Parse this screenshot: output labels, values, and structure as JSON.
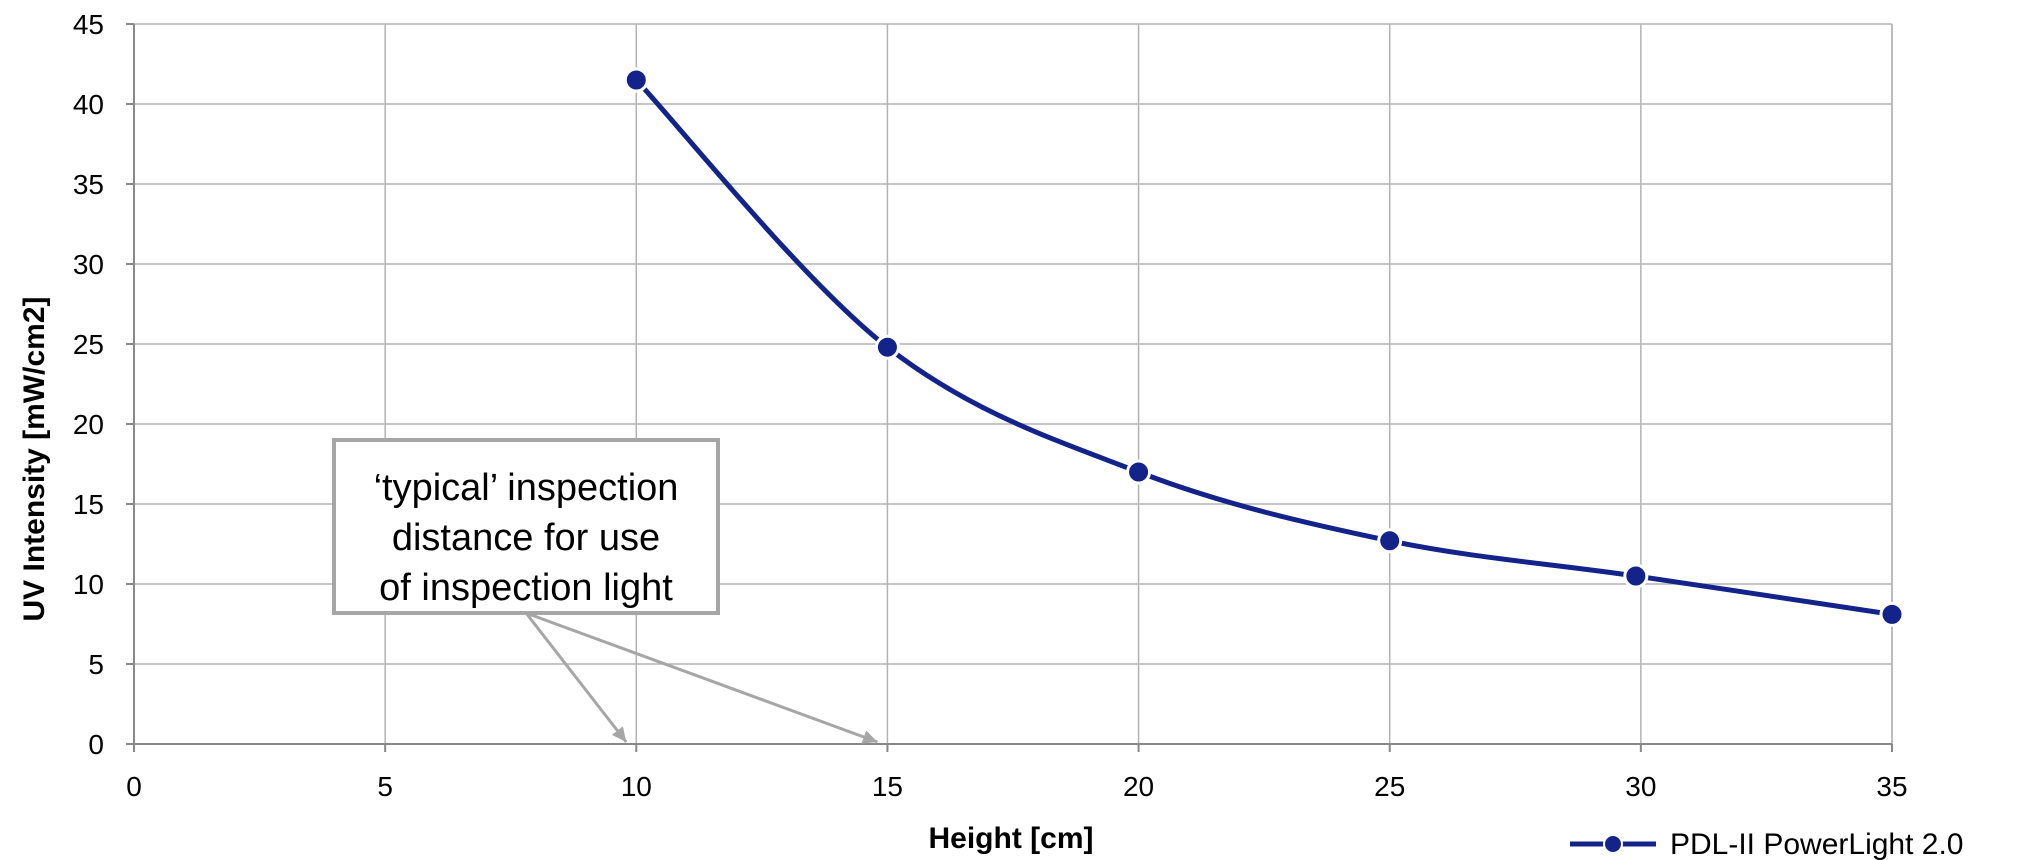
{
  "chart_data": {
    "type": "line",
    "xlabel": "Height [cm]",
    "ylabel": "UV Intensity [mW/cm2]",
    "xlim": [
      0,
      35
    ],
    "ylim": [
      0,
      45
    ],
    "x_ticks": [
      0,
      5,
      10,
      15,
      20,
      25,
      30,
      35
    ],
    "y_ticks": [
      0,
      5,
      10,
      15,
      20,
      25,
      30,
      35,
      40,
      45
    ],
    "grid": true,
    "legend_position": "bottom-right",
    "series": [
      {
        "name": "PDL-II PowerLight 2.0",
        "color": "#14238a",
        "marker": "circle",
        "smooth": true,
        "x": [
          10,
          15,
          20,
          25,
          29.9,
          35
        ],
        "y": [
          41.5,
          24.8,
          17.0,
          12.7,
          10.5,
          8.1
        ]
      }
    ],
    "annotation": {
      "lines": [
        "‘typical’ inspection",
        "distance for use",
        "of inspection light"
      ],
      "arrow_targets_x": [
        9.8,
        14.8
      ]
    }
  }
}
